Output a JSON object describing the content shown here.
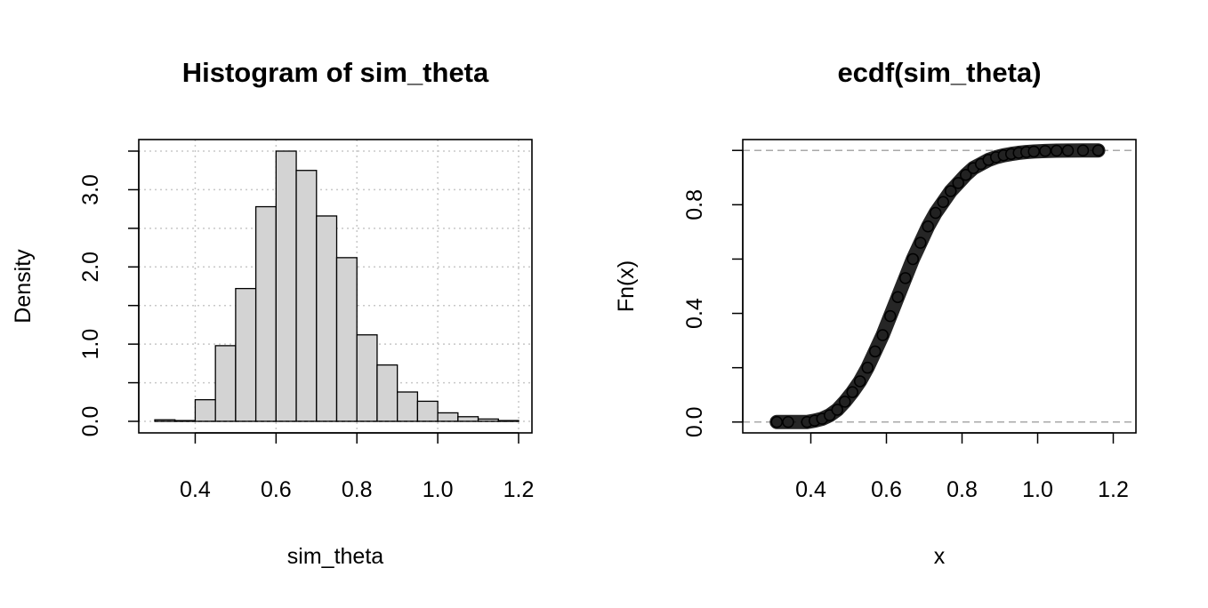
{
  "chart_data": [
    {
      "type": "bar",
      "title": "Histogram of sim_theta",
      "xlabel": "sim_theta",
      "ylabel": "Density",
      "xlim": [
        0.3,
        1.2
      ],
      "ylim": [
        0,
        3.5
      ],
      "x_ticks": [
        0.4,
        0.6,
        0.8,
        1.0,
        1.2
      ],
      "x_tick_labels": [
        "0.4",
        "0.6",
        "0.8",
        "1.0",
        "1.2"
      ],
      "y_ticks": [
        0,
        0.5,
        1,
        1.5,
        2,
        2.5,
        3,
        3.5
      ],
      "y_tick_labels": [
        "0.0",
        "1.0",
        "2.0",
        "3.0"
      ],
      "y_tick_labeled_values": [
        0,
        1,
        2,
        3
      ],
      "grid": true,
      "bin_edges": [
        0.3,
        0.35,
        0.4,
        0.45,
        0.5,
        0.55,
        0.6,
        0.65,
        0.7,
        0.75,
        0.8,
        0.85,
        0.9,
        0.95,
        1.0,
        1.05,
        1.1,
        1.15,
        1.2
      ],
      "values": [
        0.02,
        0.01,
        0.28,
        0.98,
        1.72,
        2.78,
        3.5,
        3.25,
        2.66,
        2.12,
        1.12,
        0.73,
        0.38,
        0.26,
        0.11,
        0.06,
        0.03,
        0.01
      ],
      "bar_color": "#d3d3d3"
    },
    {
      "type": "scatter",
      "title": "ecdf(sim_theta)",
      "xlabel": "x",
      "ylabel": "Fn(x)",
      "xlim": [
        0.22,
        1.26
      ],
      "ylim": [
        -0.04,
        1.04
      ],
      "x_ticks": [
        0.4,
        0.6,
        0.8,
        1.0,
        1.2
      ],
      "x_tick_labels": [
        "0.4",
        "0.6",
        "0.8",
        "1.0",
        "1.2"
      ],
      "y_ticks": [
        0,
        0.2,
        0.4,
        0.6,
        0.8,
        1.0
      ],
      "y_tick_labels": [
        "0.0",
        "0.4",
        "0.8"
      ],
      "y_tick_labeled_values": [
        0,
        0.4,
        0.8
      ],
      "reference_lines_y": [
        0,
        1
      ],
      "grid": false,
      "x": [
        0.31,
        0.34,
        0.39,
        0.41,
        0.43,
        0.45,
        0.47,
        0.49,
        0.51,
        0.53,
        0.55,
        0.57,
        0.59,
        0.61,
        0.63,
        0.65,
        0.67,
        0.69,
        0.71,
        0.73,
        0.75,
        0.77,
        0.79,
        0.81,
        0.83,
        0.85,
        0.87,
        0.89,
        0.91,
        0.93,
        0.95,
        0.97,
        0.99,
        1.02,
        1.05,
        1.08,
        1.12,
        1.16
      ],
      "y": [
        0.0,
        0.0,
        0.0,
        0.005,
        0.012,
        0.025,
        0.045,
        0.075,
        0.11,
        0.15,
        0.2,
        0.26,
        0.32,
        0.39,
        0.46,
        0.53,
        0.6,
        0.66,
        0.72,
        0.77,
        0.81,
        0.85,
        0.88,
        0.91,
        0.935,
        0.95,
        0.965,
        0.975,
        0.982,
        0.987,
        0.991,
        0.994,
        0.996,
        0.998,
        0.999,
        0.9995,
        0.9998,
        1.0
      ]
    }
  ]
}
